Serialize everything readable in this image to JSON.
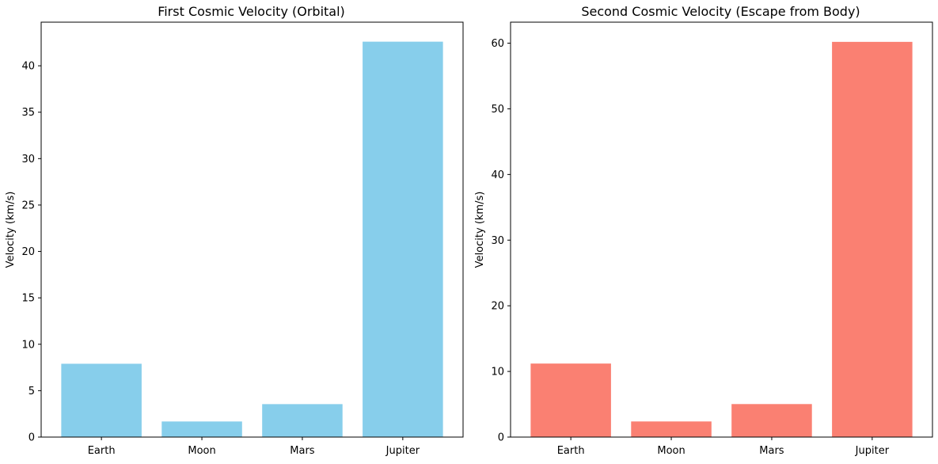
{
  "chart_data": [
    {
      "type": "bar",
      "title": "First Cosmic Velocity (Orbital)",
      "xlabel": "",
      "ylabel": "Velocity (km/s)",
      "categories": [
        "Earth",
        "Moon",
        "Mars",
        "Jupiter"
      ],
      "values": [
        7.9,
        1.68,
        3.55,
        42.6
      ],
      "ylim": [
        0,
        44.7
      ],
      "yticks": [
        0,
        5,
        10,
        15,
        20,
        25,
        30,
        35,
        40
      ],
      "bar_color": "#87ceeb",
      "grid": false,
      "legend": "none"
    },
    {
      "type": "bar",
      "title": "Second Cosmic Velocity (Escape from Body)",
      "xlabel": "",
      "ylabel": "Velocity (km/s)",
      "categories": [
        "Earth",
        "Moon",
        "Mars",
        "Jupiter"
      ],
      "values": [
        11.2,
        2.38,
        5.03,
        60.2
      ],
      "ylim": [
        0,
        63.2
      ],
      "yticks": [
        0,
        10,
        20,
        30,
        40,
        50,
        60
      ],
      "bar_color": "#fa8072",
      "grid": false,
      "legend": "none"
    }
  ]
}
